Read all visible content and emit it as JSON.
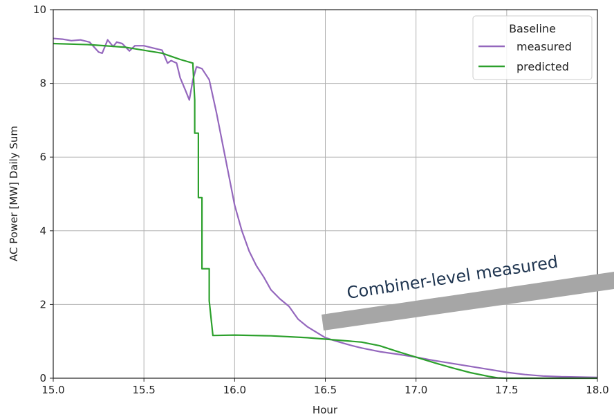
{
  "chart_data": {
    "type": "line",
    "xlabel": "Hour",
    "ylabel": "AC Power [MW] Daily Sum",
    "xlim": [
      15.0,
      18.0
    ],
    "ylim": [
      0,
      10
    ],
    "xticks": [
      "15.0",
      "15.5",
      "16.0",
      "16.5",
      "17.0",
      "17.5",
      "18.0"
    ],
    "yticks": [
      "0",
      "2",
      "4",
      "6",
      "8",
      "10"
    ],
    "grid": true,
    "legend": {
      "title": "Baseline",
      "placement": "top-right"
    },
    "series": [
      {
        "name": "measured",
        "color": "#9467bd",
        "x": [
          15.0,
          15.05,
          15.1,
          15.15,
          15.2,
          15.25,
          15.27,
          15.3,
          15.33,
          15.35,
          15.38,
          15.42,
          15.45,
          15.5,
          15.55,
          15.6,
          15.63,
          15.65,
          15.68,
          15.7,
          15.73,
          15.75,
          15.77,
          15.79,
          15.82,
          15.86,
          15.9,
          15.94,
          15.98,
          16.0,
          16.04,
          16.08,
          16.12,
          16.16,
          16.2,
          16.25,
          16.3,
          16.35,
          16.4,
          16.45,
          16.5,
          16.55,
          16.6,
          16.65,
          16.7,
          16.8,
          16.9,
          17.0,
          17.1,
          17.2,
          17.3,
          17.4,
          17.5,
          17.6,
          17.7,
          17.8,
          17.9,
          18.0
        ],
        "y": [
          9.22,
          9.2,
          9.16,
          9.18,
          9.12,
          8.85,
          8.82,
          9.18,
          9.0,
          9.12,
          9.08,
          8.88,
          9.02,
          9.02,
          8.96,
          8.9,
          8.55,
          8.62,
          8.55,
          8.15,
          7.8,
          7.55,
          8.1,
          8.45,
          8.4,
          8.1,
          7.2,
          6.2,
          5.2,
          4.7,
          4.0,
          3.45,
          3.05,
          2.75,
          2.4,
          2.15,
          1.95,
          1.6,
          1.4,
          1.25,
          1.1,
          1.02,
          0.95,
          0.88,
          0.82,
          0.72,
          0.65,
          0.57,
          0.48,
          0.4,
          0.32,
          0.24,
          0.16,
          0.1,
          0.06,
          0.04,
          0.03,
          0.02
        ]
      },
      {
        "name": "predicted",
        "color": "#2ca02c",
        "x": [
          15.0,
          15.2,
          15.4,
          15.6,
          15.7,
          15.77,
          15.77,
          15.78,
          15.78,
          15.8,
          15.8,
          15.82,
          15.82,
          15.86,
          15.86,
          15.88,
          15.88,
          16.0,
          16.2,
          16.4,
          16.6,
          16.7,
          16.8,
          16.9,
          17.0,
          17.1,
          17.2,
          17.3,
          17.4,
          17.45,
          17.5,
          17.6,
          17.8,
          18.0
        ],
        "y": [
          9.08,
          9.05,
          8.98,
          8.82,
          8.65,
          8.55,
          8.5,
          7.55,
          6.65,
          6.65,
          4.9,
          4.9,
          2.97,
          2.97,
          2.1,
          1.16,
          1.16,
          1.17,
          1.15,
          1.1,
          1.02,
          0.98,
          0.88,
          0.72,
          0.57,
          0.42,
          0.28,
          0.15,
          0.05,
          0.01,
          0.0,
          0.0,
          0.0,
          0.0
        ]
      }
    ],
    "annotation": "Combiner-level measured"
  }
}
